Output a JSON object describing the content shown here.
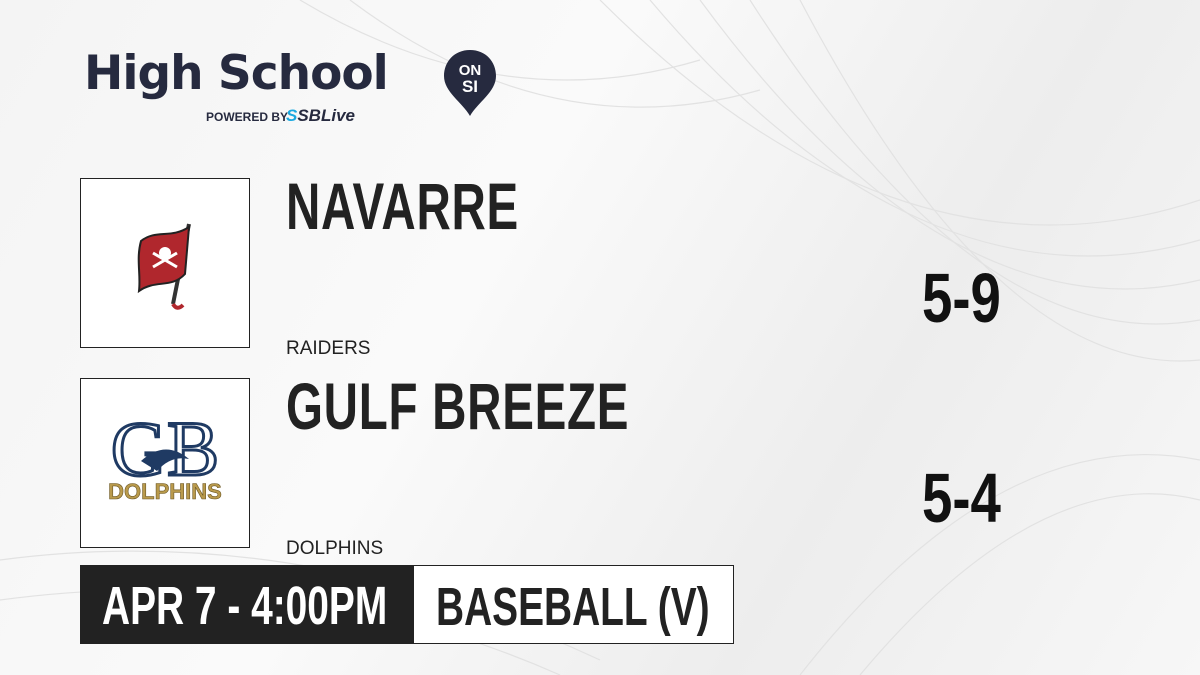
{
  "brand": {
    "title": "High School",
    "badge_top": "ON",
    "badge_bottom": "SI",
    "powered_by": "POWERED BY",
    "partner_prefix": "S",
    "partner": "SBLive",
    "accent": "#1ca9e0",
    "navy": "#262a3f"
  },
  "teams": [
    {
      "name": "NAVARRE",
      "mascot": "RAIDERS",
      "record": "5-9",
      "logo_icon": "pirate-flag-logo"
    },
    {
      "name": "GULF BREEZE",
      "mascot": "DOLPHINS",
      "record": "5-4",
      "logo_icon": "gb-dolphins-logo",
      "logo_text": "DOLPHINS"
    }
  ],
  "game": {
    "datetime": "APR 7 - 4:00PM",
    "sport": "BASEBALL (V)"
  }
}
